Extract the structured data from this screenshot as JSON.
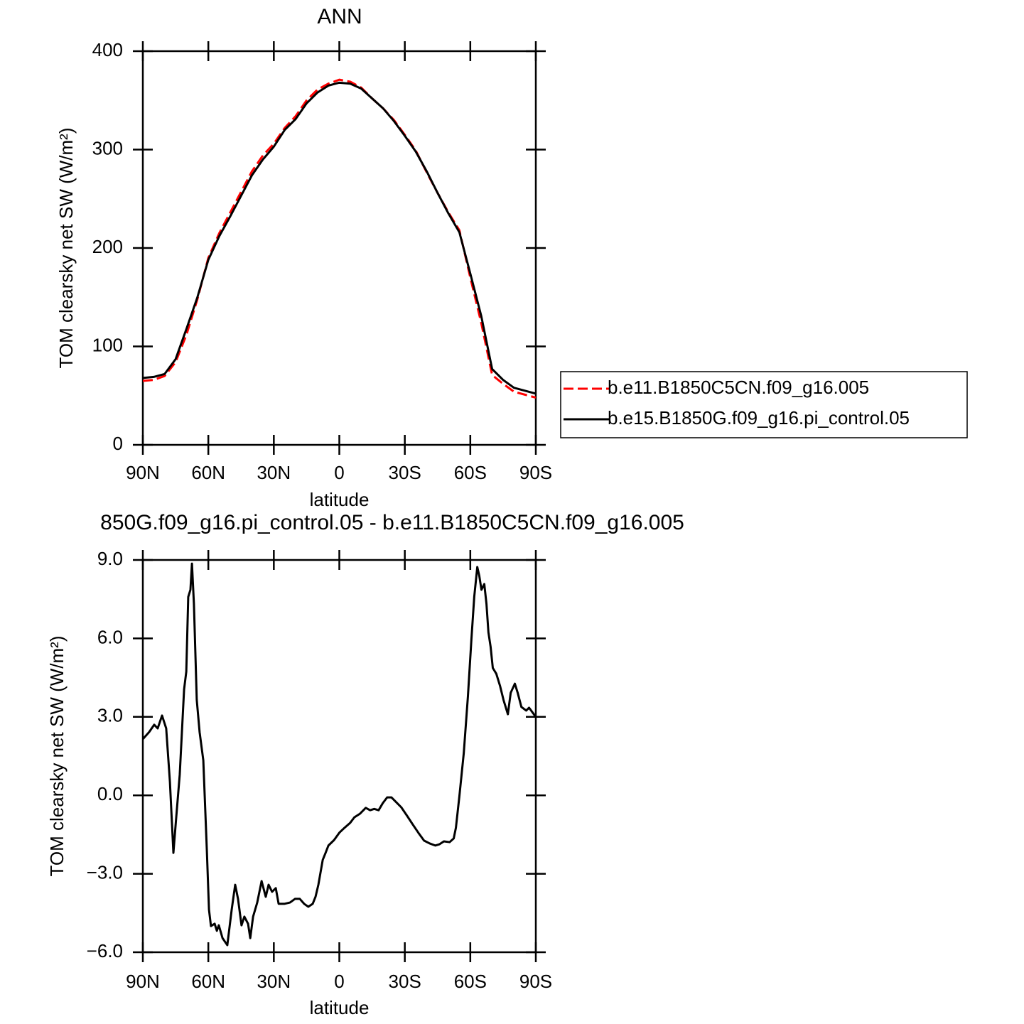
{
  "chart_data": [
    {
      "type": "line",
      "title": "ANN",
      "xlabel": "latitude",
      "ylabel": "TOM clearsky net SW (W/m²)",
      "x": [
        90,
        85,
        80,
        75,
        70,
        65,
        60,
        55,
        50,
        45,
        40,
        35,
        30,
        25,
        20,
        15,
        10,
        5,
        0,
        -5,
        -10,
        -15,
        -20,
        -25,
        -30,
        -35,
        -40,
        -45,
        -50,
        -55,
        -60,
        -65,
        -70,
        -75,
        -80,
        -85,
        -90
      ],
      "series": [
        {
          "name": "b.e11.B1850C5CN.f09_g16.005",
          "color": "#ff0000",
          "linestyle": "dashed",
          "values": [
            65,
            66,
            70,
            84,
            112,
            148,
            190,
            215,
            236,
            257,
            278,
            294,
            306,
            322,
            334,
            350,
            361,
            367,
            371,
            369,
            363,
            352,
            342,
            330,
            315,
            299,
            277,
            256,
            236,
            218,
            170,
            124,
            71,
            62,
            54,
            51,
            48
          ]
        },
        {
          "name": "b.e15.B1850G.f09_g16.pi_control.05",
          "color": "#000000",
          "linestyle": "solid",
          "values": [
            68,
            69,
            72,
            87,
            118,
            150,
            188,
            212,
            232,
            253,
            274,
            290,
            303,
            320,
            331,
            347,
            358,
            365,
            368,
            367,
            362,
            352,
            342,
            329,
            314,
            298,
            278,
            256,
            235,
            216,
            174,
            131,
            77,
            66,
            58,
            55,
            52
          ]
        }
      ],
      "xlim": [
        90,
        -90
      ],
      "xticks": [
        {
          "value": 90,
          "label": "90N"
        },
        {
          "value": 60,
          "label": "60N"
        },
        {
          "value": 30,
          "label": "30N"
        },
        0,
        {
          "value": -30,
          "label": "30S"
        },
        {
          "value": -60,
          "label": "60S"
        },
        {
          "value": -90,
          "label": "90S"
        }
      ],
      "ylim": [
        0,
        400
      ],
      "yticks": [
        0,
        100,
        200,
        300,
        400
      ],
      "grid": false,
      "legend": "outside-right"
    },
    {
      "type": "line",
      "title": "850G.f09_g16.pi_control.05 - b.e11.B1850C5CN.f09_g16.005",
      "xlabel": "latitude",
      "ylabel": "TOM clearsky net SW (W/m²)",
      "x": [
        90,
        87.1,
        84.8,
        83.2,
        81.2,
        79.3,
        77.6,
        76.0,
        74.7,
        73.1,
        71.1,
        70.1,
        69.2,
        68.2,
        67.5,
        66.6,
        65.3,
        64.0,
        62.3,
        60.7,
        59.7,
        58.8,
        57.1,
        56.1,
        55.2,
        53.5,
        51.3,
        49.3,
        47.7,
        46.4,
        44.8,
        43.5,
        41.8,
        40.8,
        39.5,
        37.6,
        35.6,
        33.7,
        32.4,
        30.8,
        29.1,
        27.8,
        25.2,
        22.6,
        20.3,
        18.1,
        16.1,
        14.2,
        12.2,
        10.9,
        9.6,
        7.6,
        6.3,
        5.0,
        2.4,
        0,
        -2.4,
        -5.0,
        -6.9,
        -9.5,
        -12.1,
        -14.1,
        -16.0,
        -18.0,
        -19.9,
        -21.9,
        -23.9,
        -25.8,
        -28.4,
        -31.0,
        -33.6,
        -36.2,
        -38.8,
        -41.4,
        -44.0,
        -45.9,
        -47.9,
        -50.5,
        -52.4,
        -53.4,
        -55.0,
        -57.0,
        -58.9,
        -60.5,
        -61.8,
        -63.2,
        -64.1,
        -65.1,
        -66.4,
        -67.4,
        -68.3,
        -69.3,
        -70.3,
        -71.9,
        -73.6,
        -75.2,
        -77.2,
        -78.5,
        -80.4,
        -81.7,
        -83.4,
        -85.6,
        -86.9,
        -90
      ],
      "series": [
        {
          "color": "#000000",
          "linestyle": "solid",
          "values": [
            2.15,
            2.42,
            2.7,
            2.56,
            3.05,
            2.56,
            0.52,
            -2.2,
            -0.84,
            0.79,
            4.05,
            4.73,
            7.59,
            7.86,
            8.86,
            7.32,
            3.65,
            2.42,
            1.34,
            -2.06,
            -4.37,
            -5.0,
            -4.91,
            -5.18,
            -4.97,
            -5.46,
            -5.73,
            -4.37,
            -3.42,
            -3.96,
            -4.97,
            -4.64,
            -4.91,
            -5.46,
            -4.64,
            -4.1,
            -3.28,
            -3.88,
            -3.42,
            -3.69,
            -3.55,
            -4.15,
            -4.15,
            -4.1,
            -3.96,
            -3.96,
            -4.15,
            -4.26,
            -4.15,
            -3.88,
            -3.42,
            -2.47,
            -2.2,
            -1.92,
            -1.71,
            -1.43,
            -1.24,
            -1.05,
            -0.84,
            -0.7,
            -0.48,
            -0.57,
            -0.52,
            -0.57,
            -0.3,
            -0.08,
            -0.08,
            -0.24,
            -0.46,
            -0.78,
            -1.11,
            -1.43,
            -1.73,
            -1.84,
            -1.92,
            -1.87,
            -1.76,
            -1.79,
            -1.65,
            -1.24,
            -0.03,
            1.61,
            3.78,
            5.96,
            7.59,
            8.73,
            8.4,
            7.86,
            8.08,
            7.32,
            6.23,
            5.68,
            4.87,
            4.65,
            4.19,
            3.65,
            3.1,
            3.92,
            4.27,
            3.92,
            3.38,
            3.24,
            3.35,
            3.0
          ]
        }
      ],
      "xlim": [
        90,
        -90
      ],
      "xticks": [
        {
          "value": 90,
          "label": "90N"
        },
        {
          "value": 60,
          "label": "60N"
        },
        {
          "value": 30,
          "label": "30N"
        },
        0,
        {
          "value": -30,
          "label": "30S"
        },
        {
          "value": -60,
          "label": "60S"
        },
        {
          "value": -90,
          "label": "90S"
        }
      ],
      "ylim": [
        -6,
        9
      ],
      "yticks": [
        {
          "value": -6,
          "label": "−6.0"
        },
        {
          "value": -3,
          "label": "−3.0"
        },
        {
          "value": 0,
          "label": "0.0"
        },
        {
          "value": 3,
          "label": "3.0"
        },
        {
          "value": 6,
          "label": "6.0"
        },
        {
          "value": 9,
          "label": "9.0"
        }
      ],
      "grid": false
    }
  ]
}
